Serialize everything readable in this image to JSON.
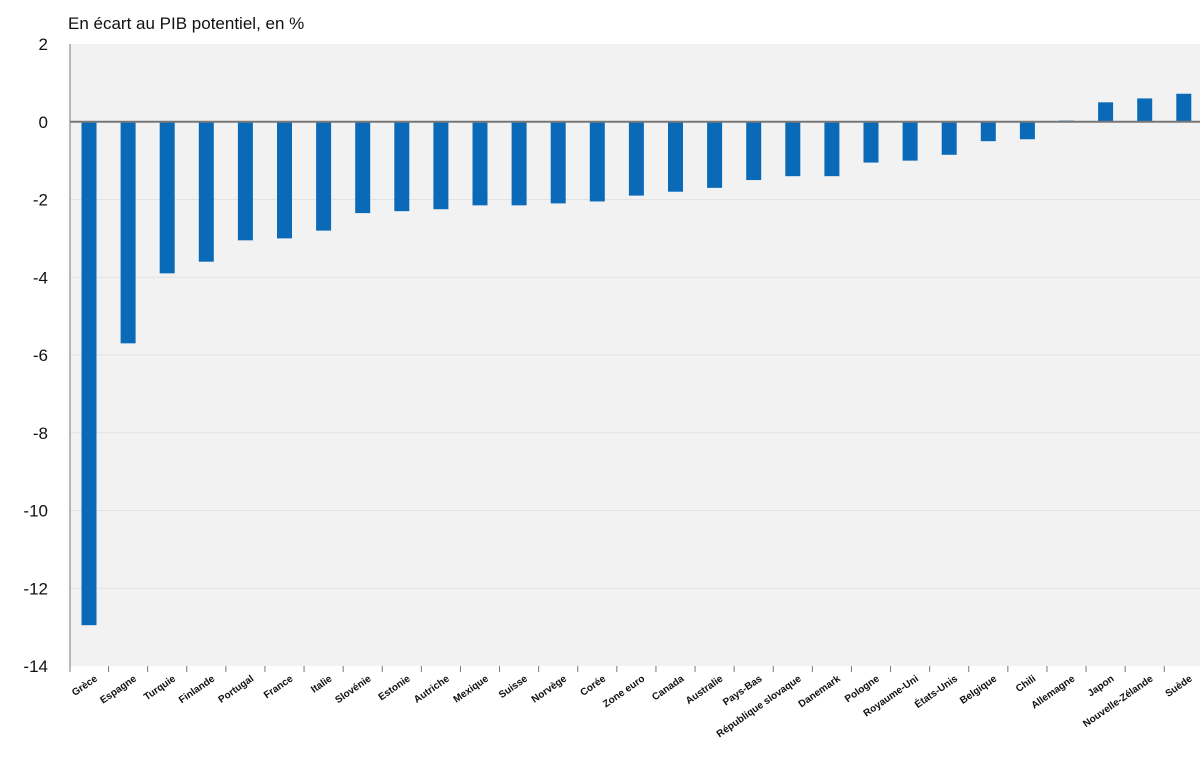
{
  "chart_data": {
    "type": "bar",
    "title": "En écart au PIB potentiel, en %",
    "xlabel": "",
    "ylabel": "",
    "ylim": [
      -14,
      2
    ],
    "yticks": [
      2,
      0,
      -2,
      -4,
      -6,
      -8,
      -10,
      -12,
      -14
    ],
    "grid": true,
    "colors": {
      "bar": "#0a6ab8",
      "plot_bg": "#f2f2f2",
      "grid": "#e2e2e2",
      "axis": "#777777"
    },
    "categories": [
      "Grèce",
      "Espagne",
      "Turquie",
      "Finlande",
      "Portugal",
      "France",
      "Italie",
      "Slovénie",
      "Estonie",
      "Autriche",
      "Mexique",
      "Suisse",
      "Norvège",
      "Corée",
      "Zone euro",
      "Canada",
      "Australie",
      "Pays-Bas",
      "République slovaque",
      "Danemark",
      "Pologne",
      "Royaume-Uni",
      "États-Unis",
      "Belgique",
      "Chili",
      "Allemagne",
      "Japon",
      "Nouvelle-Zélande",
      "Suède"
    ],
    "values": [
      -12.95,
      -5.7,
      -3.9,
      -3.6,
      -3.05,
      -3.0,
      -2.8,
      -2.35,
      -2.3,
      -2.25,
      -2.15,
      -2.15,
      -2.1,
      -2.05,
      -1.9,
      -1.8,
      -1.7,
      -1.5,
      -1.4,
      -1.4,
      -1.05,
      -1.0,
      -0.85,
      -0.5,
      -0.45,
      0.03,
      0.5,
      0.6,
      0.72
    ]
  }
}
